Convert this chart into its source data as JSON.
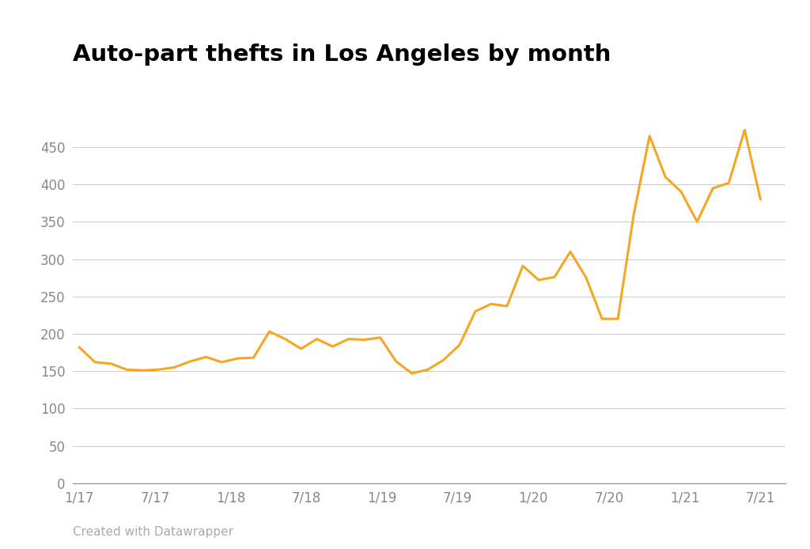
{
  "title": "Auto-part thefts in Los Angeles by month",
  "line_color": "#f5a623",
  "background_color": "#ffffff",
  "x_labels": [
    "1/17",
    "7/17",
    "1/18",
    "7/18",
    "1/19",
    "7/19",
    "1/20",
    "7/20",
    "1/21",
    "7/21"
  ],
  "ylim": [
    0,
    500
  ],
  "yticks": [
    0,
    50,
    100,
    150,
    200,
    250,
    300,
    350,
    400,
    450
  ],
  "credit": "Created with Datawrapper",
  "line_width": 2.2,
  "values": [
    182,
    162,
    160,
    152,
    151,
    152,
    155,
    163,
    169,
    162,
    167,
    168,
    203,
    193,
    180,
    193,
    183,
    193,
    192,
    195,
    163,
    147,
    152,
    165,
    185,
    230,
    240,
    237,
    291,
    272,
    276,
    310,
    275,
    220,
    220,
    360,
    465,
    410,
    390,
    350,
    395,
    402,
    473,
    380
  ],
  "num_points": 44,
  "x_tick_positions": [
    0,
    6,
    12,
    18,
    24,
    30,
    36,
    42,
    48,
    54
  ],
  "x_total": 54
}
